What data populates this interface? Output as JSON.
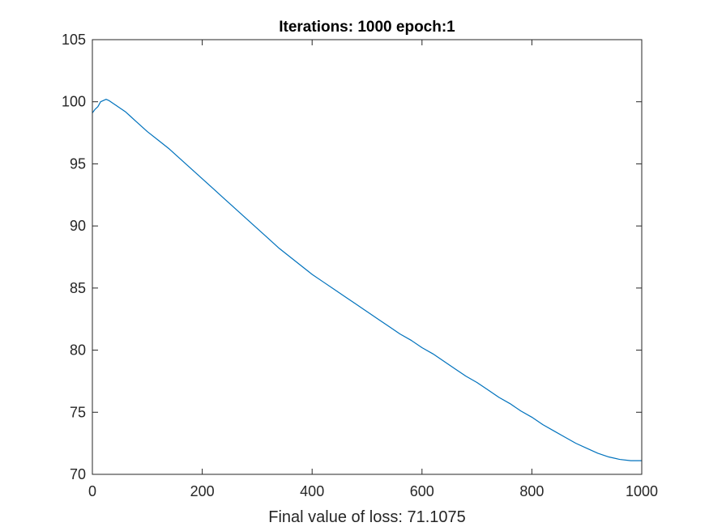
{
  "chart_data": {
    "type": "line",
    "title": "Iterations: 1000  epoch:1",
    "xlabel": "Final value of loss: 71.1075",
    "ylabel": "",
    "xlim": [
      0,
      1000
    ],
    "ylim": [
      70,
      105
    ],
    "xticks": [
      0,
      200,
      400,
      600,
      800,
      1000
    ],
    "yticks": [
      70,
      75,
      80,
      85,
      90,
      95,
      100,
      105
    ],
    "grid": false,
    "legend": false,
    "line_color": "#0072BD",
    "axis_color": "#262626",
    "series": [
      {
        "x": [
          0,
          5,
          10,
          15,
          20,
          25,
          30,
          40,
          50,
          60,
          70,
          80,
          90,
          100,
          120,
          140,
          160,
          180,
          200,
          220,
          240,
          260,
          280,
          300,
          320,
          340,
          360,
          380,
          400,
          420,
          440,
          460,
          480,
          500,
          520,
          540,
          560,
          580,
          600,
          620,
          640,
          660,
          680,
          700,
          720,
          740,
          760,
          780,
          800,
          820,
          840,
          860,
          880,
          900,
          920,
          940,
          960,
          980,
          1000
        ],
        "y": [
          99.1,
          99.4,
          99.6,
          100.0,
          100.1,
          100.2,
          100.1,
          99.8,
          99.5,
          99.2,
          98.8,
          98.4,
          98.0,
          97.6,
          96.9,
          96.2,
          95.4,
          94.6,
          93.8,
          93.0,
          92.2,
          91.4,
          90.6,
          89.8,
          89.0,
          88.2,
          87.5,
          86.8,
          86.1,
          85.5,
          84.9,
          84.3,
          83.7,
          83.1,
          82.5,
          81.9,
          81.3,
          80.8,
          80.2,
          79.7,
          79.1,
          78.5,
          77.9,
          77.4,
          76.8,
          76.2,
          75.7,
          75.1,
          74.6,
          74.0,
          73.5,
          73.0,
          72.5,
          72.1,
          71.7,
          71.4,
          71.2,
          71.1,
          71.1
        ]
      }
    ]
  }
}
